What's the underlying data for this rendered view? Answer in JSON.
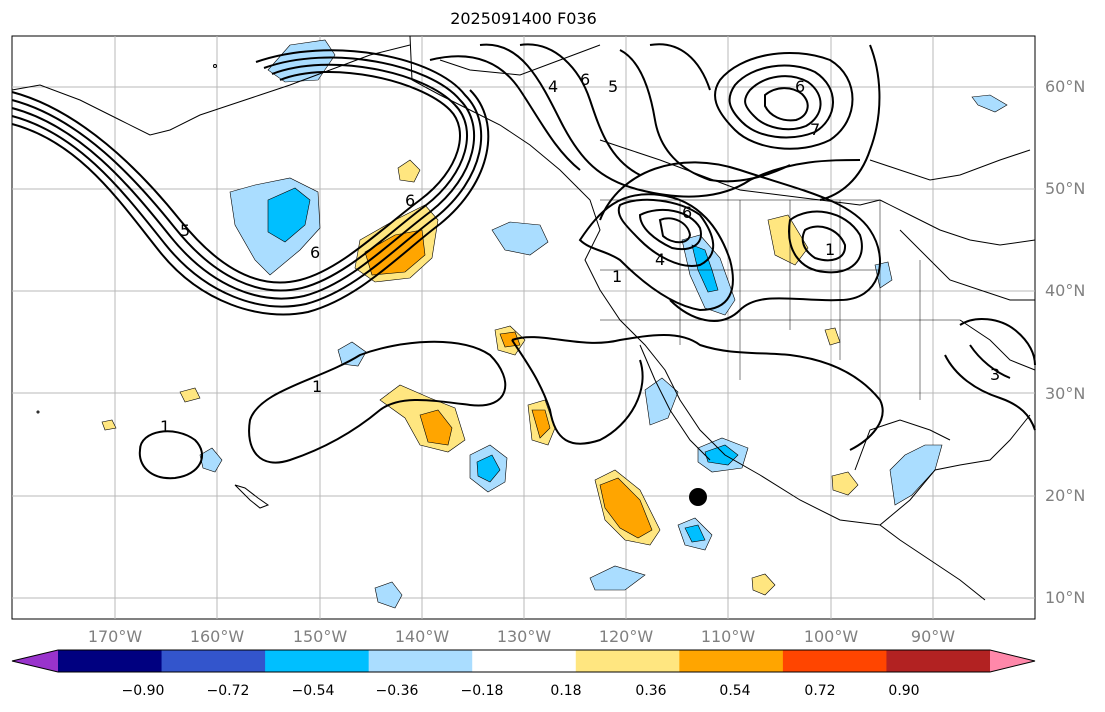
{
  "title": "2025091400 F036",
  "colors": {
    "land_outline": "#000000",
    "grid": "#b0b0b0",
    "contour": "#000000",
    "marker": "#000000"
  },
  "map": {
    "projection": "PlateCarree",
    "lon_range": [
      -180,
      -80
    ],
    "lat_range": [
      8,
      65
    ],
    "lon_labels": [
      "170°W",
      "160°W",
      "150°W",
      "140°W",
      "130°W",
      "120°W",
      "110°W",
      "100°W",
      "90°W"
    ],
    "lat_labels": [
      "60°N",
      "50°N",
      "40°N",
      "30°N",
      "20°N",
      "10°N"
    ],
    "storm_marker": {
      "lon": -113,
      "lat": 20
    }
  },
  "colorbar": {
    "ticks": [
      "−0.90",
      "−0.72",
      "−0.54",
      "−0.36",
      "−0.18",
      "0.18",
      "0.36",
      "0.54",
      "0.72",
      "0.90"
    ],
    "bins": [
      {
        "color": "#9933cc",
        "label": "< -0.90"
      },
      {
        "color": "#000080",
        "label": "-0.90 to -0.72"
      },
      {
        "color": "#3355cc",
        "label": "-0.72 to -0.54"
      },
      {
        "color": "#00bfff",
        "label": "-0.54 to -0.36"
      },
      {
        "color": "#aaddff",
        "label": "-0.36 to -0.18"
      },
      {
        "color": "#ffffff",
        "label": "-0.18 to 0.18"
      },
      {
        "color": "#ffe680",
        "label": "0.18 to 0.36"
      },
      {
        "color": "#ffa500",
        "label": "0.36 to 0.54"
      },
      {
        "color": "#ff4500",
        "label": "0.54 to 0.72"
      },
      {
        "color": "#b22222",
        "label": "0.72 to 0.90"
      },
      {
        "color": "#ff88aa",
        "label": "> 0.90"
      }
    ]
  },
  "contour_labels": [
    "1",
    "1",
    "1",
    "5",
    "6",
    "6",
    "6",
    "5",
    "4",
    "6",
    "1",
    "7",
    "6",
    "4",
    "3"
  ]
}
